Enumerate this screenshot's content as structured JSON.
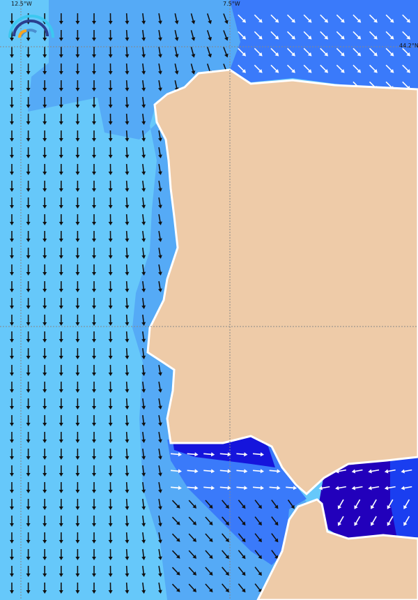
{
  "map": {
    "grid_labels": {
      "lon_west": "12.5°W",
      "lon_east": "7.5°W",
      "lat_north": "44.2°N"
    },
    "colors": {
      "sea_light": "#66c8fa",
      "sea_mid": "#55aaf6",
      "sea_blue": "#3a7afa",
      "sea_deep": "#1515dc",
      "sea_darkest": "#2200bb",
      "land": "#eecba8",
      "arrow_dark": "#111111",
      "arrow_light": "#ffffff"
    },
    "logo": "wave-logo"
  }
}
